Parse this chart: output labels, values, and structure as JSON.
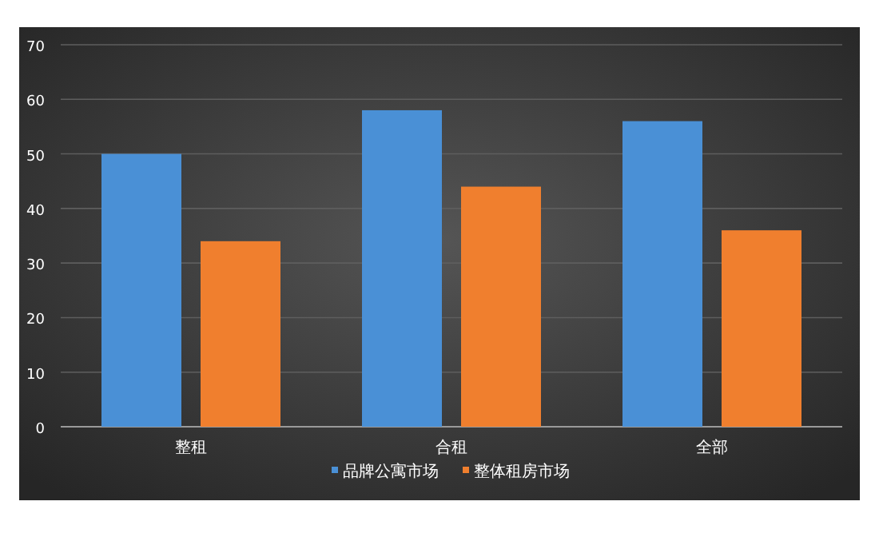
{
  "chart_data": {
    "type": "bar",
    "categories": [
      "整租",
      "合租",
      "全部"
    ],
    "series": [
      {
        "name": "品牌公寓市场",
        "color": "#4a90d6",
        "values": [
          50,
          58,
          56
        ]
      },
      {
        "name": "整体租房市场",
        "color": "#f07f2e",
        "values": [
          34,
          44,
          36
        ]
      }
    ],
    "ylim": [
      0,
      70
    ],
    "yticks": [
      0,
      10,
      20,
      30,
      40,
      50,
      60,
      70
    ],
    "grid": "y",
    "legend": "bottom"
  }
}
